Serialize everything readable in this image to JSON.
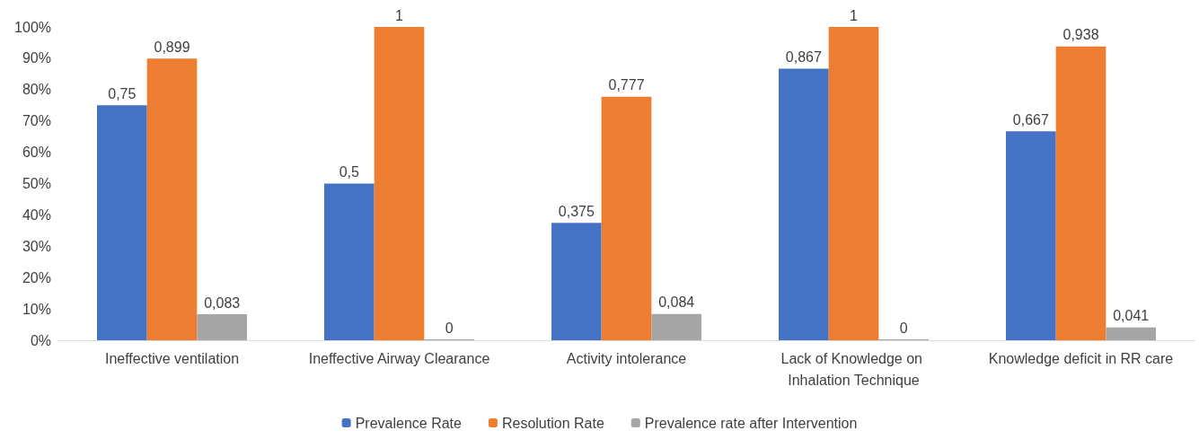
{
  "chart_data": {
    "type": "bar",
    "categories": [
      "Ineffective ventilation",
      "Ineffective Airway Clearance",
      "Activity intolerance",
      "Lack of Knowledge on Inhalation Technique",
      "Knowledge deficit in RR care"
    ],
    "series": [
      {
        "name": "Prevalence Rate",
        "color": "#4472c4",
        "values": [
          0.75,
          0.5,
          0.375,
          0.867,
          0.667
        ],
        "value_labels": [
          "0,75",
          "0,5",
          "0,375",
          "0,867",
          "0,667"
        ]
      },
      {
        "name": "Resolution Rate",
        "color": "#ed7d31",
        "values": [
          0.899,
          1,
          0.777,
          1,
          0.938
        ],
        "value_labels": [
          "0,899",
          "1",
          "0,777",
          "1",
          "0,938"
        ]
      },
      {
        "name": "Prevalence rate after Intervention",
        "color": "#a5a5a5",
        "values": [
          0.083,
          0,
          0.084,
          0,
          0.041
        ],
        "value_labels": [
          "0,083",
          "0",
          "0,084",
          "0",
          "0,041"
        ]
      }
    ],
    "ylim": [
      0,
      1
    ],
    "yticks": [
      {
        "value": 0,
        "label": "0%"
      },
      {
        "value": 0.1,
        "label": "10%"
      },
      {
        "value": 0.2,
        "label": "20%"
      },
      {
        "value": 0.3,
        "label": "30%"
      },
      {
        "value": 0.4,
        "label": "40%"
      },
      {
        "value": 0.5,
        "label": "50%"
      },
      {
        "value": 0.6,
        "label": "60%"
      },
      {
        "value": 0.7,
        "label": "70%"
      },
      {
        "value": 0.8,
        "label": "80%"
      },
      {
        "value": 0.9,
        "label": "90%"
      },
      {
        "value": 1,
        "label": "100%"
      }
    ],
    "legend": "bottom"
  }
}
